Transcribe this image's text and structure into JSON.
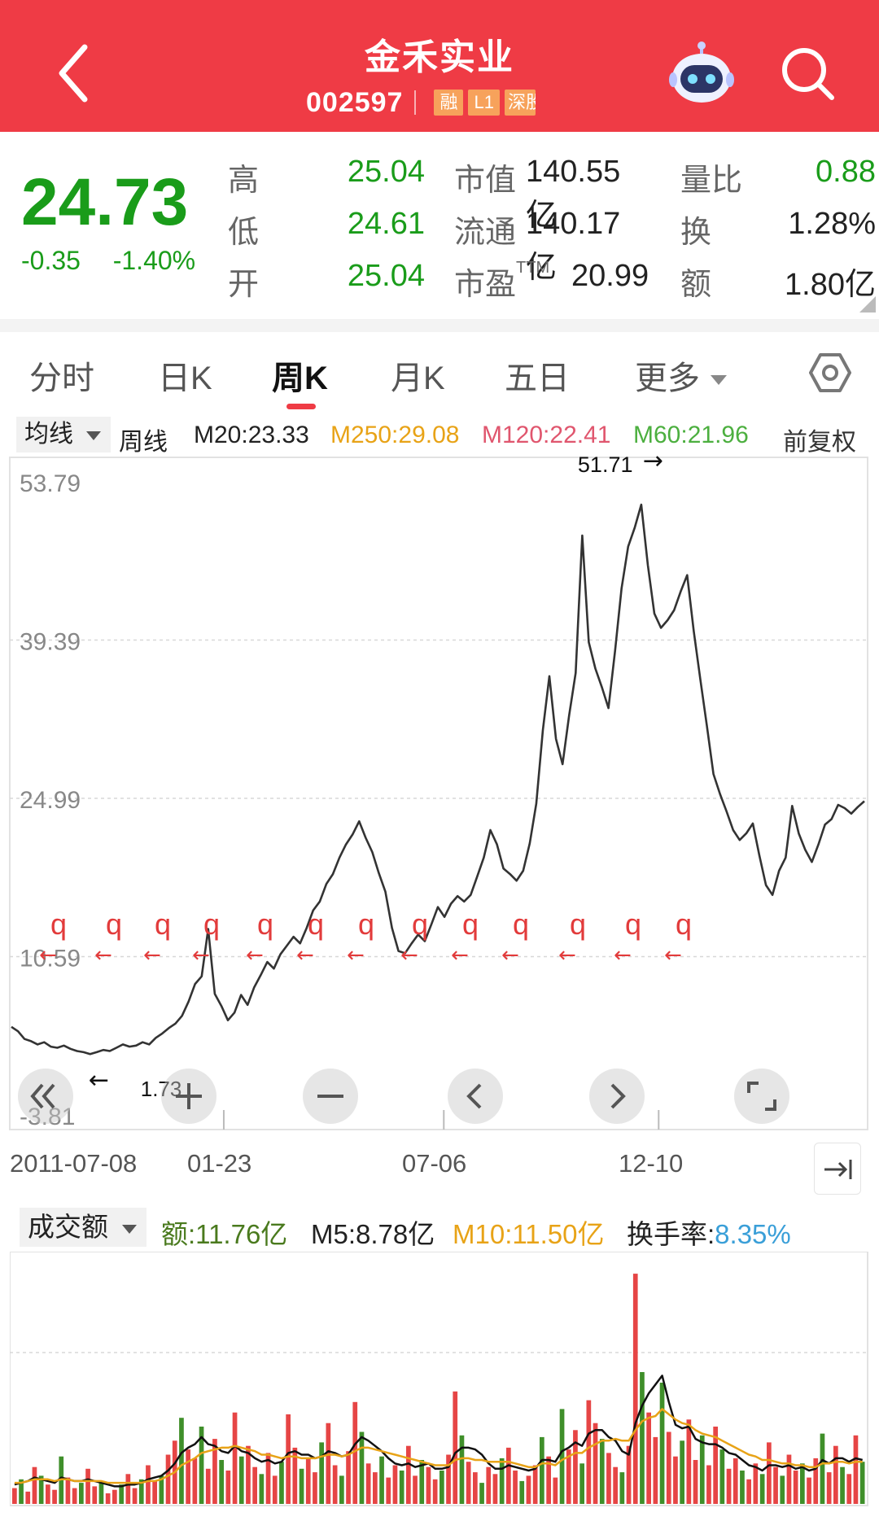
{
  "header": {
    "title": "金禾实业",
    "code": "002597",
    "tags": [
      "融",
      "L1",
      "深股"
    ],
    "bg_color": "#ef3b45"
  },
  "quote": {
    "price": "24.73",
    "change": "-0.35",
    "change_pct": "-1.40%",
    "high_label": "高",
    "high": "25.04",
    "low_label": "低",
    "low": "24.61",
    "open_label": "开",
    "open": "25.04",
    "mktcap_label": "市值",
    "mktcap": "140.55亿",
    "float_label": "流通",
    "float": "140.17亿",
    "pe_label": "市盈",
    "pe_sup": "TTM",
    "pe": "20.99",
    "vol_ratio_label": "量比",
    "vol_ratio": "0.88",
    "turnover_label": "换",
    "turnover": "1.28%",
    "amount_label": "额",
    "amount": "1.80亿",
    "down_color": "#1a9c1a"
  },
  "tabs": [
    {
      "label": "分时"
    },
    {
      "label": "日K"
    },
    {
      "label": "周K",
      "active": true
    },
    {
      "label": "月K"
    },
    {
      "label": "五日"
    },
    {
      "label": "更多"
    }
  ],
  "ma": {
    "selector": "均线",
    "period": "周线",
    "m20": "M20:23.33",
    "m250": "M250:29.08",
    "m120": "M120:22.41",
    "m60": "M60:21.96",
    "adjust": "前复权",
    "colors": {
      "m20": "#222222",
      "m250": "#e8a317",
      "m120": "#e0566e",
      "m60": "#4caf3f"
    }
  },
  "chart_data": [
    {
      "type": "line",
      "ylim": [
        -3.81,
        53.79
      ],
      "y_ticks": [
        "53.79",
        "39.39",
        "24.99",
        "10.59",
        "-3.81"
      ],
      "x_ticks": [
        "2011-07-08",
        "01-23",
        "07-06",
        "12-10"
      ],
      "annotations": {
        "max_label": "51.71",
        "min_label": "1.73"
      },
      "series": [
        {
          "values": [
            4.2,
            3.8,
            3.1,
            2.9,
            2.6,
            2.8,
            2.4,
            2.3,
            2.5,
            2.2,
            2.0,
            1.9,
            1.73,
            1.9,
            2.1,
            2.0,
            2.3,
            2.6,
            2.4,
            2.5,
            2.8,
            2.6,
            3.2,
            3.6,
            4.1,
            4.5,
            5.2,
            6.5,
            8.1,
            8.8,
            13.1,
            7.2,
            6.1,
            4.8,
            5.5,
            7.1,
            6.2,
            7.8,
            8.9,
            10.1,
            9.5,
            10.8,
            11.6,
            12.4,
            11.8,
            13.2,
            14.8,
            15.6,
            17.2,
            18.1,
            19.6,
            20.8,
            21.7,
            22.9,
            21.4,
            20.1,
            18.2,
            16.5,
            13.2,
            11.1,
            10.9,
            11.8,
            12.6,
            12.0,
            13.5,
            15.1,
            14.2,
            15.4,
            16.1,
            15.6,
            16.2,
            17.9,
            19.6,
            22.1,
            20.8,
            18.6,
            18.1,
            17.5,
            18.4,
            20.9,
            24.5,
            31.2,
            36.1,
            30.4,
            28.1,
            32.5,
            36.4,
            48.9,
            39.2,
            36.8,
            35.1,
            33.2,
            38.4,
            44.1,
            47.9,
            49.6,
            51.71,
            46.2,
            41.8,
            40.5,
            41.2,
            42.1,
            43.8,
            45.3,
            40.2,
            35.8,
            31.6,
            27.2,
            25.4,
            23.8,
            22.1,
            21.2,
            21.8,
            22.7,
            19.8,
            17.1,
            16.2,
            18.4,
            19.6,
            24.3,
            21.8,
            20.3,
            19.2,
            20.8,
            22.6,
            23.1,
            24.4,
            24.1,
            23.6,
            24.2,
            24.73
          ]
        }
      ],
      "line_color": "#333333"
    },
    {
      "type": "bar",
      "title": "成交额",
      "series": [
        {
          "name": "额",
          "values": [
            0.9,
            1.4,
            0.7,
            2.1,
            1.6,
            1.1,
            0.8,
            2.7,
            1.5,
            0.9,
            1.2,
            2.0,
            1.0,
            1.3,
            0.6,
            0.8,
            1.1,
            1.7,
            0.9,
            1.4,
            2.2,
            1.3,
            1.6,
            2.8,
            3.6,
            4.9,
            3.1,
            2.6,
            4.4,
            2.0,
            3.7,
            2.5,
            1.9,
            5.2,
            2.7,
            3.3,
            2.1,
            1.7,
            2.9,
            1.6,
            2.4,
            5.1,
            3.2,
            2.0,
            2.6,
            1.8,
            3.5,
            4.6,
            2.2,
            1.6,
            3.0,
            5.8,
            4.1,
            2.3,
            1.8,
            2.7,
            1.5,
            2.2,
            1.9,
            3.3,
            1.6,
            2.5,
            2.1,
            1.4,
            1.9,
            2.8,
            6.4,
            3.9,
            2.4,
            1.8,
            1.2,
            2.1,
            1.7,
            2.6,
            3.2,
            1.9,
            1.3,
            1.6,
            2.2,
            3.8,
            2.7,
            1.5,
            5.4,
            3.1,
            4.2,
            2.3,
            5.9,
            4.6,
            3.7,
            2.9,
            2.1,
            1.8,
            3.3,
            13.1,
            7.5,
            5.2,
            3.8,
            6.9,
            4.1,
            2.7,
            3.6,
            4.8,
            2.5,
            3.9,
            2.2,
            4.4,
            3.1,
            2.0,
            2.6,
            1.9,
            1.4,
            2.3,
            1.7,
            3.5,
            2.1,
            1.6,
            2.8,
            1.9,
            2.3,
            1.5,
            2.6,
            4.0,
            1.8,
            3.3,
            2.1,
            1.7,
            3.9,
            2.4
          ]
        },
        {
          "name": "M5",
          "values": [
            1.1,
            1.2,
            1.3,
            1.5,
            1.4,
            1.3,
            1.2,
            1.5,
            1.4,
            1.3,
            1.3,
            1.4,
            1.3,
            1.2,
            1.1,
            1.0,
            1.0,
            1.1,
            1.1,
            1.2,
            1.4,
            1.5,
            1.6,
            1.9,
            2.3,
            2.9,
            3.2,
            3.4,
            3.8,
            3.4,
            3.3,
            3.0,
            2.9,
            3.3,
            3.0,
            2.9,
            2.6,
            2.4,
            2.5,
            2.3,
            2.4,
            2.9,
            3.0,
            2.8,
            2.8,
            2.6,
            2.7,
            3.0,
            2.9,
            2.7,
            2.8,
            3.4,
            3.8,
            3.6,
            3.3,
            3.0,
            2.6,
            2.3,
            2.2,
            2.3,
            2.1,
            2.2,
            2.3,
            2.0,
            2.0,
            2.1,
            2.9,
            3.2,
            3.2,
            3.1,
            2.8,
            2.3,
            2.0,
            2.0,
            2.2,
            2.1,
            2.0,
            1.9,
            2.0,
            2.5,
            2.5,
            2.4,
            3.0,
            3.2,
            3.5,
            3.3,
            4.0,
            4.2,
            4.2,
            3.8,
            3.6,
            3.0,
            2.8,
            4.6,
            5.6,
            6.3,
            6.8,
            7.3,
            5.8,
            4.5,
            4.3,
            4.4,
            3.7,
            3.5,
            3.4,
            3.4,
            3.2,
            2.9,
            2.8,
            2.5,
            2.2,
            2.1,
            1.9,
            2.2,
            2.2,
            2.1,
            2.2,
            2.0,
            2.1,
            1.9,
            2.0,
            2.5,
            2.3,
            2.6,
            2.6,
            2.4,
            2.6,
            2.5
          ]
        },
        {
          "name": "M10",
          "values": [
            1.2,
            1.2,
            1.3,
            1.4,
            1.4,
            1.4,
            1.3,
            1.4,
            1.4,
            1.3,
            1.3,
            1.3,
            1.3,
            1.3,
            1.2,
            1.2,
            1.2,
            1.2,
            1.2,
            1.2,
            1.3,
            1.3,
            1.4,
            1.6,
            1.8,
            2.2,
            2.4,
            2.6,
            2.9,
            3.0,
            3.1,
            3.2,
            3.2,
            3.3,
            3.2,
            3.1,
            3.0,
            2.8,
            2.8,
            2.7,
            2.6,
            2.7,
            2.7,
            2.6,
            2.6,
            2.6,
            2.7,
            2.8,
            2.8,
            2.7,
            2.8,
            3.0,
            3.2,
            3.2,
            3.1,
            3.0,
            2.9,
            2.8,
            2.7,
            2.6,
            2.5,
            2.4,
            2.3,
            2.2,
            2.2,
            2.2,
            2.5,
            2.6,
            2.6,
            2.5,
            2.5,
            2.4,
            2.4,
            2.4,
            2.4,
            2.3,
            2.2,
            2.1,
            2.1,
            2.3,
            2.3,
            2.2,
            2.5,
            2.7,
            2.9,
            2.9,
            3.2,
            3.4,
            3.6,
            3.6,
            3.7,
            3.6,
            3.6,
            4.2,
            4.7,
            4.9,
            5.0,
            5.4,
            5.1,
            4.8,
            4.6,
            4.5,
            4.2,
            4.0,
            3.9,
            3.8,
            3.6,
            3.4,
            3.2,
            3.0,
            2.8,
            2.7,
            2.5,
            2.5,
            2.4,
            2.3,
            2.3,
            2.2,
            2.2,
            2.1,
            2.1,
            2.3,
            2.3,
            2.4,
            2.4,
            2.3,
            2.4,
            2.4
          ]
        }
      ],
      "bar_colors": {
        "up": "#e64545",
        "down": "#3f8f2a"
      },
      "line_colors": {
        "m5": "#111111",
        "m10": "#e8a317"
      }
    }
  ],
  "volume": {
    "selector": "成交额",
    "amount_label": "额:11.76亿",
    "m5_label": "M5:8.78亿",
    "m10_label": "M10:11.50亿",
    "turnover_label": "换手率:",
    "turnover_value": "8.35%",
    "colors": {
      "amount": "#4a7a1e",
      "m5": "#222222",
      "m10": "#e8a317",
      "turnover": "#3a9fd8"
    }
  },
  "overlay": {
    "marker_glyph": "q",
    "marker_count": 14,
    "arrow_glyph": "←",
    "max_arrow": "→",
    "marker_color": "#e23b3b"
  }
}
